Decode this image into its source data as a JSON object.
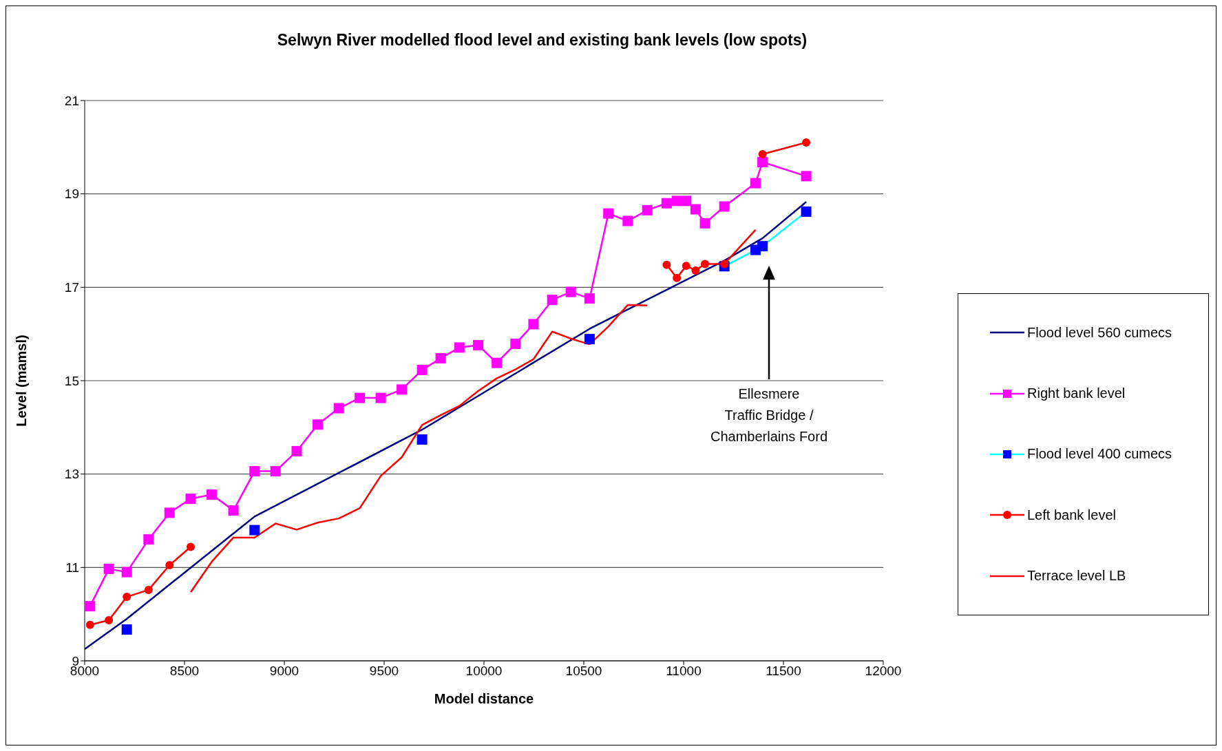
{
  "chart_data": {
    "type": "line",
    "title": "Selwyn River modelled flood level and existing bank levels (low spots)",
    "xlabel": "Model distance",
    "ylabel": "Level (mamsl)",
    "xlim": [
      8000,
      12000
    ],
    "xticks": [
      8000,
      8500,
      9000,
      9500,
      10000,
      10500,
      11000,
      11500,
      12000
    ],
    "ylim": [
      9,
      21
    ],
    "yticks": [
      9,
      11,
      13,
      15,
      17,
      19,
      21
    ],
    "grid": "y",
    "legend": "right",
    "x": [
      8027,
      8121,
      8211,
      8320,
      8425,
      8531,
      8636,
      8745,
      8851,
      8956,
      9062,
      9167,
      9273,
      9378,
      9483,
      9588,
      9690,
      9783,
      9877,
      9971,
      10064,
      10158,
      10248,
      10342,
      10435,
      10529,
      10623,
      10720,
      10818,
      10915,
      10966,
      11013,
      11060,
      11107,
      11204,
      11360,
      11395,
      11614
    ],
    "series": [
      {
        "name": "Flood level 560 cumecs",
        "color": "#000080",
        "marker": "none",
        "x": [
          8000,
          8211,
          8851,
          9690,
          10529,
          11204,
          11395,
          11614
        ],
        "values": [
          9.25,
          9.9,
          12.09,
          13.95,
          16.11,
          17.57,
          18.05,
          18.83
        ]
      },
      {
        "name": "Right bank level",
        "color": "#ff00ff",
        "marker": "square",
        "values": [
          10.17,
          10.97,
          10.9,
          11.6,
          12.17,
          12.47,
          12.56,
          12.22,
          13.06,
          13.06,
          13.49,
          14.06,
          14.41,
          14.63,
          14.63,
          14.81,
          15.23,
          15.48,
          15.71,
          15.76,
          15.38,
          15.79,
          16.21,
          16.73,
          16.9,
          16.76,
          18.58,
          18.42,
          18.65,
          18.8,
          18.85,
          18.85,
          18.67,
          18.37,
          18.73,
          19.23,
          19.68,
          19.38
        ]
      },
      {
        "name": "Flood level 400 cumecs",
        "color": "#00ffff",
        "marker": "square",
        "colors": [
          null,
          null,
          "#0000ff",
          null,
          null,
          null,
          null,
          null,
          "#0000ff",
          null,
          null,
          null,
          null,
          null,
          null,
          null,
          "#0000ff",
          null,
          null,
          null,
          null,
          null,
          null,
          null,
          null,
          "#0000ff",
          null,
          null,
          null,
          null,
          null,
          null,
          null,
          null,
          "#0000ff",
          "#0000ff",
          "#0000ff",
          "#0000ff"
        ],
        "values": [
          null,
          null,
          9.67,
          null,
          null,
          null,
          null,
          null,
          11.8,
          null,
          null,
          null,
          null,
          null,
          null,
          null,
          13.74,
          null,
          null,
          null,
          null,
          null,
          null,
          null,
          null,
          15.89,
          null,
          null,
          null,
          null,
          null,
          null,
          null,
          null,
          17.45,
          17.8,
          17.88,
          18.62
        ]
      },
      {
        "name": "Left bank level",
        "color": "#ff0000",
        "marker": "circle",
        "values": [
          9.77,
          9.87,
          10.37,
          10.52,
          11.05,
          11.44,
          null,
          null,
          null,
          null,
          null,
          null,
          null,
          null,
          null,
          null,
          null,
          null,
          null,
          null,
          null,
          null,
          null,
          null,
          null,
          null,
          null,
          null,
          null,
          17.48,
          17.2,
          17.46,
          17.36,
          17.5,
          17.5,
          null,
          19.85,
          20.1
        ]
      },
      {
        "name": "Terrace level LB",
        "color": "#ff0000",
        "marker": "none",
        "values": [
          null,
          null,
          null,
          null,
          null,
          10.47,
          11.12,
          11.64,
          11.64,
          11.94,
          11.81,
          11.96,
          12.05,
          12.27,
          12.96,
          13.36,
          14.05,
          14.26,
          14.46,
          14.78,
          15.05,
          15.24,
          15.46,
          16.05,
          15.9,
          15.78,
          16.16,
          16.62,
          16.61,
          null,
          null,
          null,
          null,
          null,
          17.5,
          18.23,
          null,
          null
        ]
      }
    ],
    "annotations": [
      "Ellesmere\nTraffic Bridge /\nChamberlains Ford"
    ]
  }
}
